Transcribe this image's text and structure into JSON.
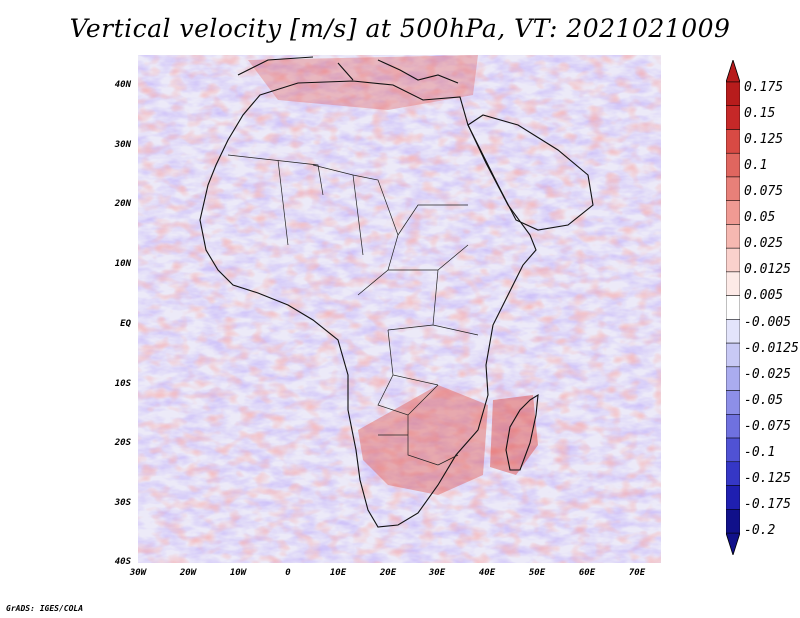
{
  "title": "Vertical velocity [m/s] at 500hPa, VT: 2021021009",
  "credit": "GrADS: IGES/COLA",
  "map": {
    "lat_labels": [
      "40N",
      "30N",
      "20N",
      "10N",
      "EQ",
      "10S",
      "20S",
      "30S",
      "40S"
    ],
    "lon_labels": [
      "30W",
      "20W",
      "10W",
      "0",
      "10E",
      "20E",
      "30E",
      "40E",
      "50E",
      "60E",
      "70E"
    ],
    "lat_range": [
      -40,
      45
    ],
    "lon_range": [
      -30,
      75
    ]
  },
  "colorbar": {
    "labels": [
      "0.175",
      "0.15",
      "0.125",
      "0.1",
      "0.075",
      "0.05",
      "0.025",
      "0.0125",
      "0.005",
      "-0.005",
      "-0.0125",
      "-0.025",
      "-0.05",
      "-0.075",
      "-0.1",
      "-0.125",
      "-0.175",
      "-0.2"
    ],
    "colors": [
      "#b71c1c",
      "#c62828",
      "#d84a44",
      "#e0665f",
      "#e88079",
      "#f09a93",
      "#f6b8b1",
      "#fad1cc",
      "#fdeae7",
      "#ffffff",
      "#e3e4fb",
      "#c8c9f5",
      "#aaacef",
      "#8d8fe8",
      "#6f71df",
      "#5052d4",
      "#3537c6",
      "#1f1fb0",
      "#10108a"
    ],
    "top_color": "#b71c1c",
    "bottom_color": "#10108a"
  }
}
